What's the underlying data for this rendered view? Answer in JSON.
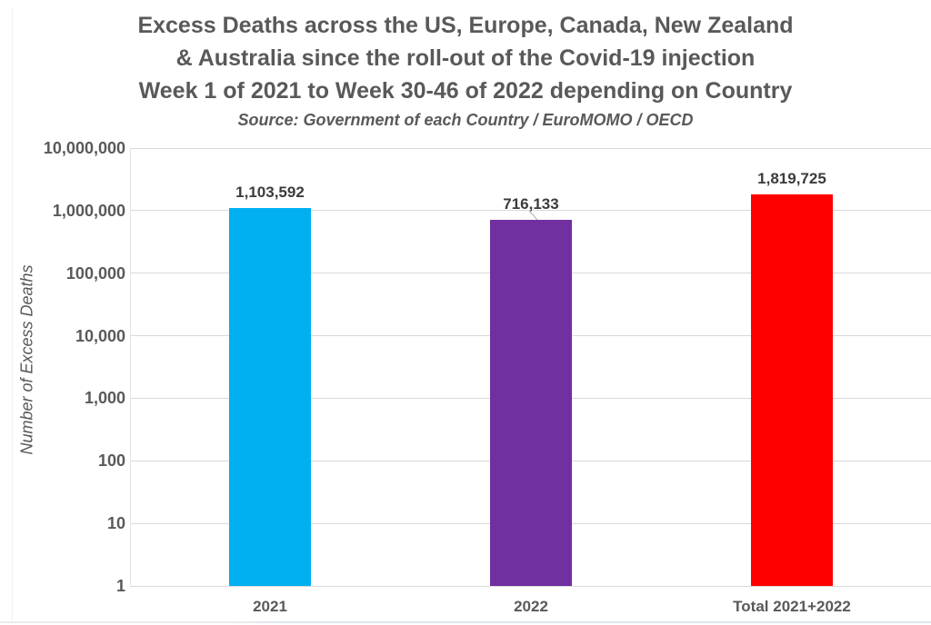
{
  "header": {
    "title_lines": [
      "Excess Deaths across the US, Europe, Canada, New Zealand",
      "& Australia since the roll-out of the Covid-19 injection",
      "Week 1 of 2021 to Week 30-46 of 2022 depending on Country"
    ],
    "source": "Source: Government of each Country / EuroMOMO / OECD"
  },
  "chart_data": {
    "type": "bar",
    "title": "Excess Deaths across the US, Europe, Canada, New Zealand & Australia since the roll-out of the Covid-19 injection — Week 1 of 2021 to Week 30-46 of 2022 depending on Country",
    "subtitle": "Source: Government of each Country / EuroMOMO / OECD",
    "categories": [
      "2021",
      "2022",
      "Total 2021+2022"
    ],
    "values": [
      1103592,
      716133,
      1819725
    ],
    "value_labels": [
      "1,103,592",
      "716,133",
      "1,819,725"
    ],
    "bar_colors": [
      "#00b0f0",
      "#7030a0",
      "#ff0000"
    ],
    "xlabel": "",
    "ylabel": "Number of Excess Deaths",
    "yscale": "log",
    "ylim": [
      1,
      10000000
    ],
    "yticks": [
      1,
      10,
      100,
      1000,
      10000,
      100000,
      1000000,
      10000000
    ],
    "ytick_labels": [
      "1",
      "10",
      "100",
      "1,000",
      "10,000",
      "100,000",
      "1,000,000",
      "10,000,000"
    ],
    "grid": true,
    "legend_position": "none"
  },
  "colors": {
    "text": "#595959",
    "data_label_text": "#3b3b3b",
    "gridline": "#d9d9d9",
    "bar_2021": "#00b0f0",
    "bar_2022": "#7030a0",
    "bar_total": "#ff0000"
  }
}
